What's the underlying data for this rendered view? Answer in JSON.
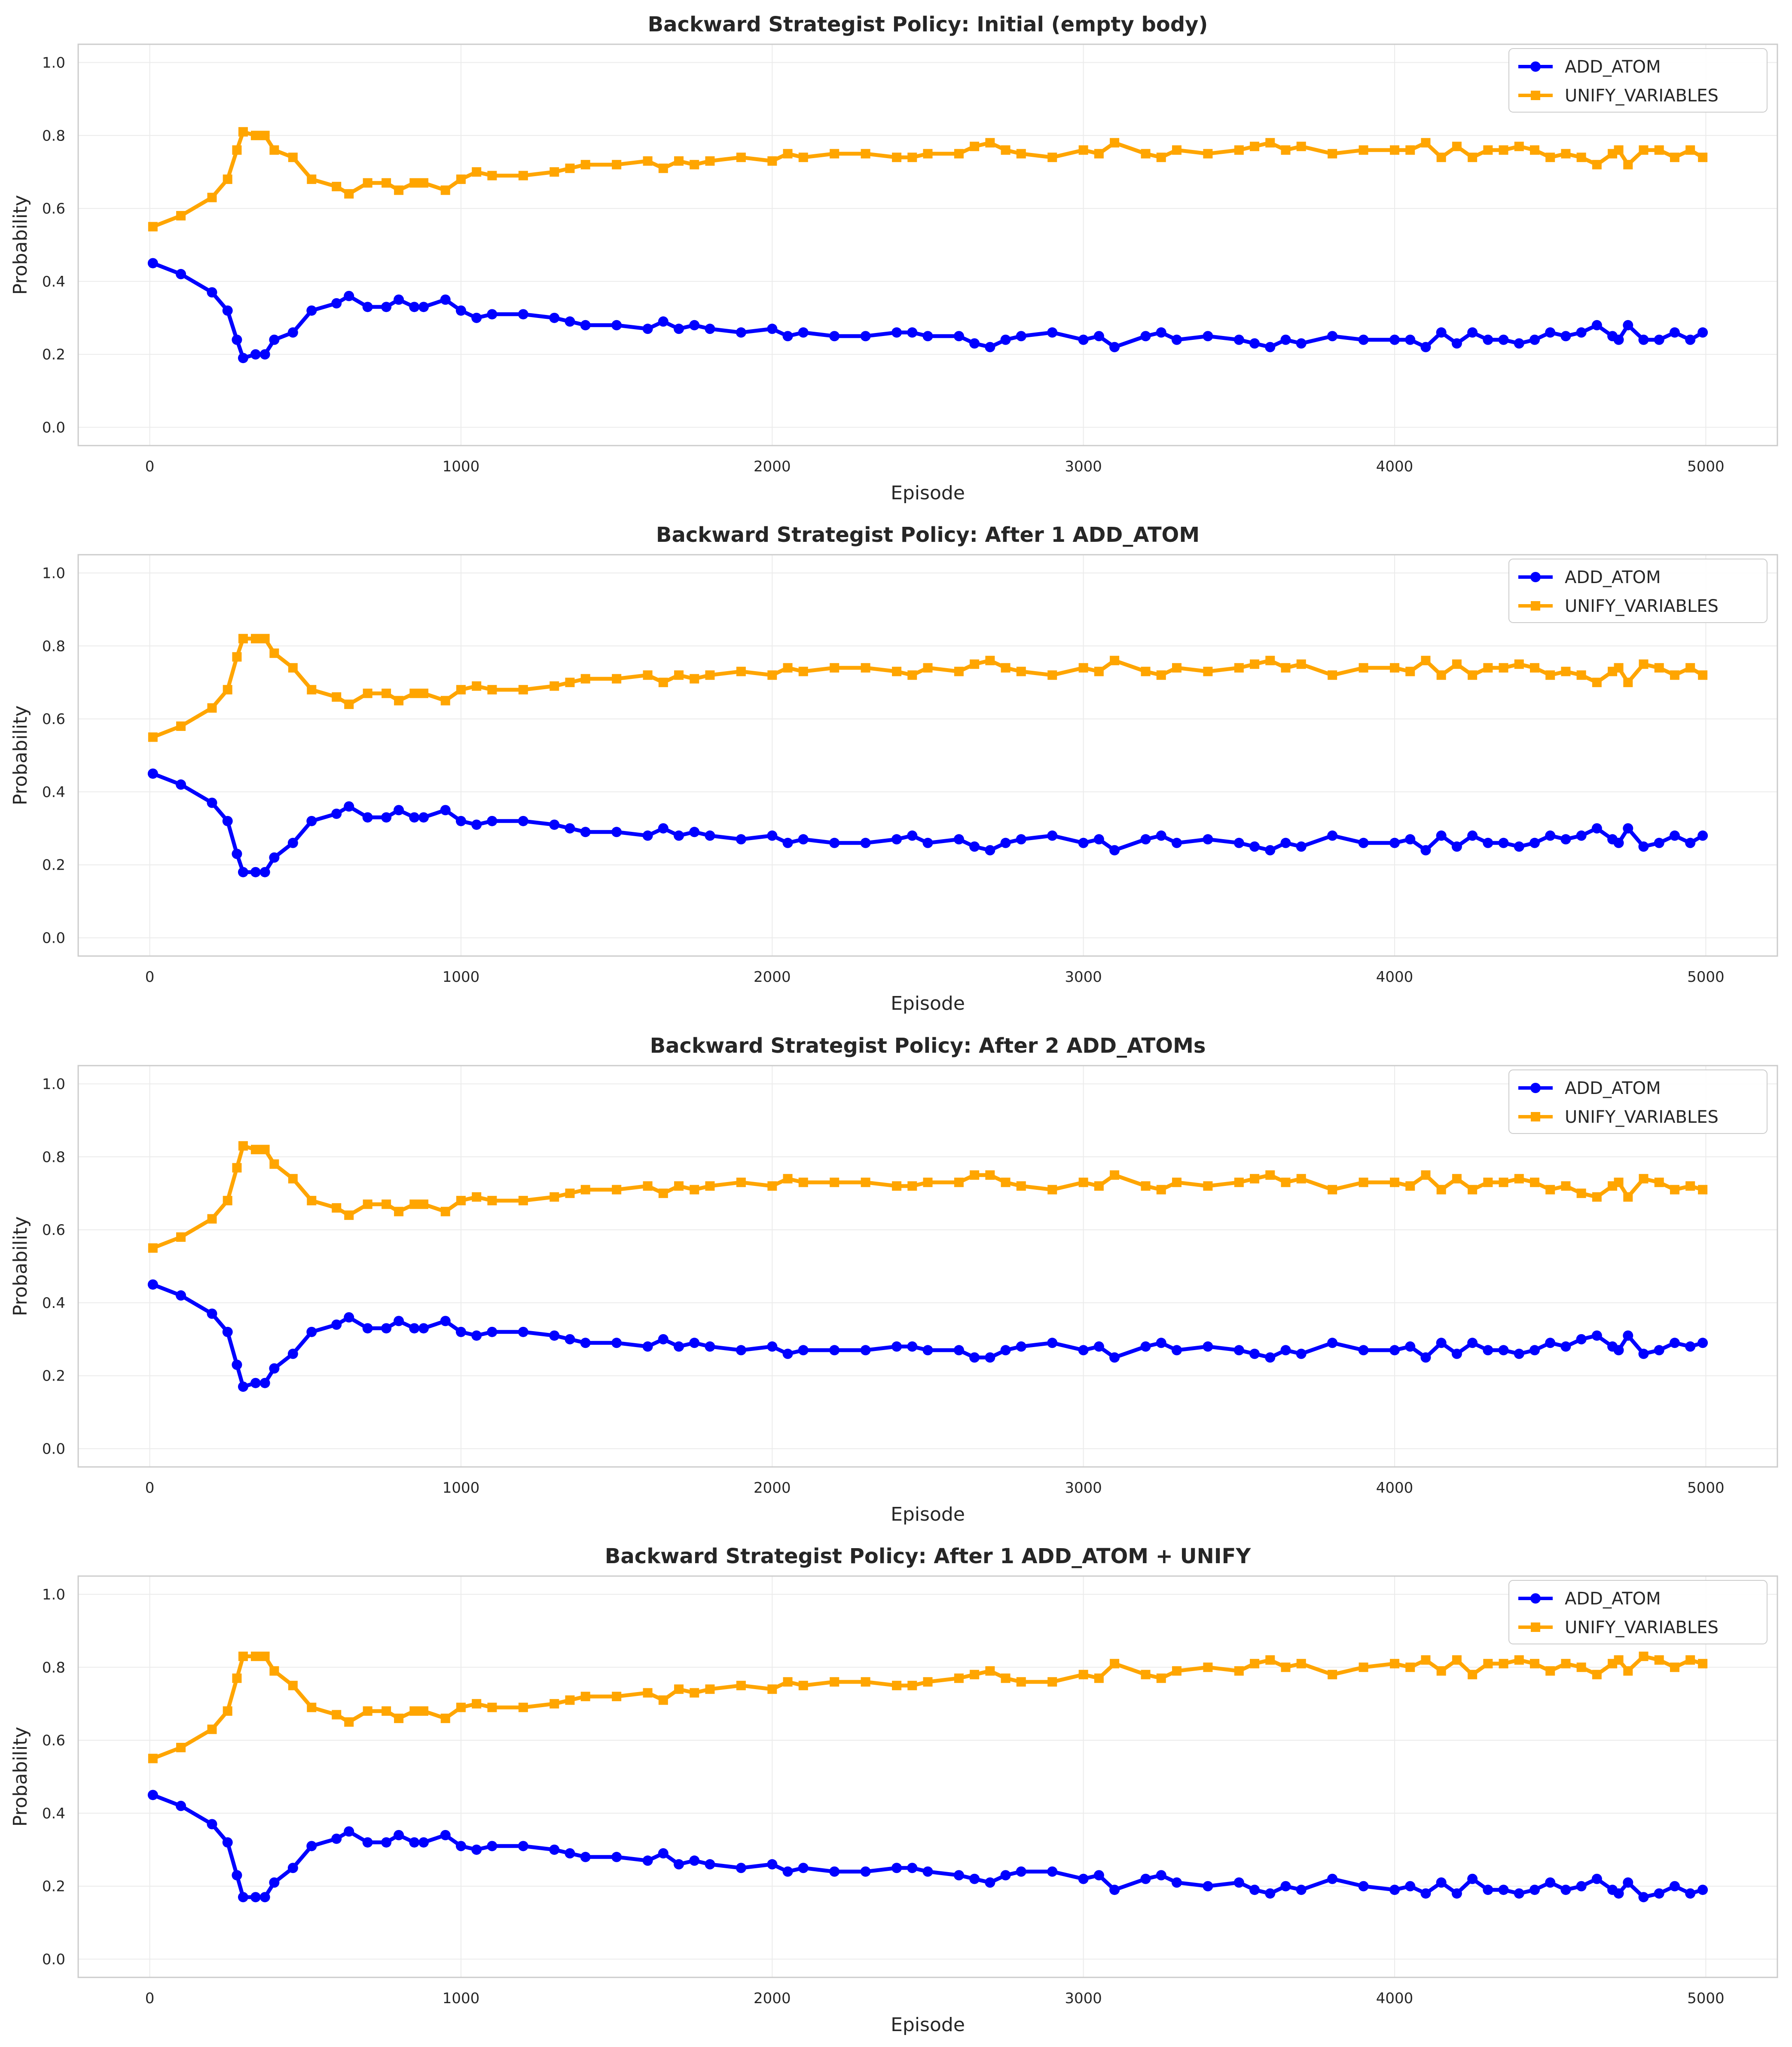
{
  "colors": {
    "add_atom": "#0000ff",
    "unify_variables": "#ffa500",
    "grid": "#ebebeb",
    "axes_edge": "#cccccc",
    "text": "#262626"
  },
  "chart_data": [
    {
      "type": "line",
      "title": "Backward Strategist Policy: Initial (empty body)",
      "xlabel": "Episode",
      "ylabel": "Probability",
      "xlim": [
        -230,
        5230
      ],
      "ylim": [
        -0.05,
        1.05
      ],
      "xticks": [
        "0",
        "1000",
        "2000",
        "3000",
        "4000",
        "5000"
      ],
      "yticks": [
        "0.0",
        "0.2",
        "0.4",
        "0.6",
        "0.8",
        "1.0"
      ],
      "grid": true,
      "legend": "top-right",
      "x": [
        10,
        100,
        200,
        250,
        280,
        300,
        340,
        370,
        400,
        460,
        520,
        600,
        640,
        700,
        760,
        800,
        850,
        880,
        950,
        1000,
        1050,
        1100,
        1200,
        1300,
        1350,
        1400,
        1500,
        1600,
        1650,
        1700,
        1750,
        1800,
        1900,
        2000,
        2050,
        2100,
        2200,
        2300,
        2400,
        2450,
        2500,
        2600,
        2650,
        2700,
        2750,
        2800,
        2900,
        3000,
        3050,
        3100,
        3200,
        3250,
        3300,
        3400,
        3500,
        3550,
        3600,
        3650,
        3700,
        3800,
        3900,
        4000,
        4050,
        4100,
        4150,
        4200,
        4250,
        4300,
        4350,
        4400,
        4450,
        4500,
        4550,
        4600,
        4650,
        4700,
        4720,
        4750,
        4800,
        4850,
        4900,
        4950,
        4990
      ],
      "series": [
        {
          "name": "ADD_ATOM",
          "marker": "circle",
          "values": [
            0.45,
            0.42,
            0.37,
            0.32,
            0.24,
            0.19,
            0.2,
            0.2,
            0.24,
            0.26,
            0.32,
            0.34,
            0.36,
            0.33,
            0.33,
            0.35,
            0.33,
            0.33,
            0.35,
            0.32,
            0.3,
            0.31,
            0.31,
            0.3,
            0.29,
            0.28,
            0.28,
            0.27,
            0.29,
            0.27,
            0.28,
            0.27,
            0.26,
            0.27,
            0.25,
            0.26,
            0.25,
            0.25,
            0.26,
            0.26,
            0.25,
            0.25,
            0.23,
            0.22,
            0.24,
            0.25,
            0.26,
            0.24,
            0.25,
            0.22,
            0.25,
            0.26,
            0.24,
            0.25,
            0.24,
            0.23,
            0.22,
            0.24,
            0.23,
            0.25,
            0.24,
            0.24,
            0.24,
            0.22,
            0.26,
            0.23,
            0.26,
            0.24,
            0.24,
            0.23,
            0.24,
            0.26,
            0.25,
            0.26,
            0.28,
            0.25,
            0.24,
            0.28,
            0.24,
            0.24,
            0.26,
            0.24,
            0.26
          ]
        },
        {
          "name": "UNIFY_VARIABLES",
          "marker": "square",
          "values": [
            0.55,
            0.58,
            0.63,
            0.68,
            0.76,
            0.81,
            0.8,
            0.8,
            0.76,
            0.74,
            0.68,
            0.66,
            0.64,
            0.67,
            0.67,
            0.65,
            0.67,
            0.67,
            0.65,
            0.68,
            0.7,
            0.69,
            0.69,
            0.7,
            0.71,
            0.72,
            0.72,
            0.73,
            0.71,
            0.73,
            0.72,
            0.73,
            0.74,
            0.73,
            0.75,
            0.74,
            0.75,
            0.75,
            0.74,
            0.74,
            0.75,
            0.75,
            0.77,
            0.78,
            0.76,
            0.75,
            0.74,
            0.76,
            0.75,
            0.78,
            0.75,
            0.74,
            0.76,
            0.75,
            0.76,
            0.77,
            0.78,
            0.76,
            0.77,
            0.75,
            0.76,
            0.76,
            0.76,
            0.78,
            0.74,
            0.77,
            0.74,
            0.76,
            0.76,
            0.77,
            0.76,
            0.74,
            0.75,
            0.74,
            0.72,
            0.75,
            0.76,
            0.72,
            0.76,
            0.76,
            0.74,
            0.76,
            0.74
          ]
        }
      ]
    },
    {
      "type": "line",
      "title": "Backward Strategist Policy: After 1 ADD_ATOM",
      "xlabel": "Episode",
      "ylabel": "Probability",
      "xlim": [
        -230,
        5230
      ],
      "ylim": [
        -0.05,
        1.05
      ],
      "xticks": [
        "0",
        "1000",
        "2000",
        "3000",
        "4000",
        "5000"
      ],
      "yticks": [
        "0.0",
        "0.2",
        "0.4",
        "0.6",
        "0.8",
        "1.0"
      ],
      "grid": true,
      "legend": "top-right",
      "x": [
        10,
        100,
        200,
        250,
        280,
        300,
        340,
        370,
        400,
        460,
        520,
        600,
        640,
        700,
        760,
        800,
        850,
        880,
        950,
        1000,
        1050,
        1100,
        1200,
        1300,
        1350,
        1400,
        1500,
        1600,
        1650,
        1700,
        1750,
        1800,
        1900,
        2000,
        2050,
        2100,
        2200,
        2300,
        2400,
        2450,
        2500,
        2600,
        2650,
        2700,
        2750,
        2800,
        2900,
        3000,
        3050,
        3100,
        3200,
        3250,
        3300,
        3400,
        3500,
        3550,
        3600,
        3650,
        3700,
        3800,
        3900,
        4000,
        4050,
        4100,
        4150,
        4200,
        4250,
        4300,
        4350,
        4400,
        4450,
        4500,
        4550,
        4600,
        4650,
        4700,
        4720,
        4750,
        4800,
        4850,
        4900,
        4950,
        4990
      ],
      "series": [
        {
          "name": "ADD_ATOM",
          "marker": "circle",
          "values": [
            0.45,
            0.42,
            0.37,
            0.32,
            0.23,
            0.18,
            0.18,
            0.18,
            0.22,
            0.26,
            0.32,
            0.34,
            0.36,
            0.33,
            0.33,
            0.35,
            0.33,
            0.33,
            0.35,
            0.32,
            0.31,
            0.32,
            0.32,
            0.31,
            0.3,
            0.29,
            0.29,
            0.28,
            0.3,
            0.28,
            0.29,
            0.28,
            0.27,
            0.28,
            0.26,
            0.27,
            0.26,
            0.26,
            0.27,
            0.28,
            0.26,
            0.27,
            0.25,
            0.24,
            0.26,
            0.27,
            0.28,
            0.26,
            0.27,
            0.24,
            0.27,
            0.28,
            0.26,
            0.27,
            0.26,
            0.25,
            0.24,
            0.26,
            0.25,
            0.28,
            0.26,
            0.26,
            0.27,
            0.24,
            0.28,
            0.25,
            0.28,
            0.26,
            0.26,
            0.25,
            0.26,
            0.28,
            0.27,
            0.28,
            0.3,
            0.27,
            0.26,
            0.3,
            0.25,
            0.26,
            0.28,
            0.26,
            0.28
          ]
        },
        {
          "name": "UNIFY_VARIABLES",
          "marker": "square",
          "values": [
            0.55,
            0.58,
            0.63,
            0.68,
            0.77,
            0.82,
            0.82,
            0.82,
            0.78,
            0.74,
            0.68,
            0.66,
            0.64,
            0.67,
            0.67,
            0.65,
            0.67,
            0.67,
            0.65,
            0.68,
            0.69,
            0.68,
            0.68,
            0.69,
            0.7,
            0.71,
            0.71,
            0.72,
            0.7,
            0.72,
            0.71,
            0.72,
            0.73,
            0.72,
            0.74,
            0.73,
            0.74,
            0.74,
            0.73,
            0.72,
            0.74,
            0.73,
            0.75,
            0.76,
            0.74,
            0.73,
            0.72,
            0.74,
            0.73,
            0.76,
            0.73,
            0.72,
            0.74,
            0.73,
            0.74,
            0.75,
            0.76,
            0.74,
            0.75,
            0.72,
            0.74,
            0.74,
            0.73,
            0.76,
            0.72,
            0.75,
            0.72,
            0.74,
            0.74,
            0.75,
            0.74,
            0.72,
            0.73,
            0.72,
            0.7,
            0.73,
            0.74,
            0.7,
            0.75,
            0.74,
            0.72,
            0.74,
            0.72
          ]
        }
      ]
    },
    {
      "type": "line",
      "title": "Backward Strategist Policy: After 2 ADD_ATOMs",
      "xlabel": "Episode",
      "ylabel": "Probability",
      "xlim": [
        -230,
        5230
      ],
      "ylim": [
        -0.05,
        1.05
      ],
      "xticks": [
        "0",
        "1000",
        "2000",
        "3000",
        "4000",
        "5000"
      ],
      "yticks": [
        "0.0",
        "0.2",
        "0.4",
        "0.6",
        "0.8",
        "1.0"
      ],
      "grid": true,
      "legend": "top-right",
      "x": [
        10,
        100,
        200,
        250,
        280,
        300,
        340,
        370,
        400,
        460,
        520,
        600,
        640,
        700,
        760,
        800,
        850,
        880,
        950,
        1000,
        1050,
        1100,
        1200,
        1300,
        1350,
        1400,
        1500,
        1600,
        1650,
        1700,
        1750,
        1800,
        1900,
        2000,
        2050,
        2100,
        2200,
        2300,
        2400,
        2450,
        2500,
        2600,
        2650,
        2700,
        2750,
        2800,
        2900,
        3000,
        3050,
        3100,
        3200,
        3250,
        3300,
        3400,
        3500,
        3550,
        3600,
        3650,
        3700,
        3800,
        3900,
        4000,
        4050,
        4100,
        4150,
        4200,
        4250,
        4300,
        4350,
        4400,
        4450,
        4500,
        4550,
        4600,
        4650,
        4700,
        4720,
        4750,
        4800,
        4850,
        4900,
        4950,
        4990
      ],
      "series": [
        {
          "name": "ADD_ATOM",
          "marker": "circle",
          "values": [
            0.45,
            0.42,
            0.37,
            0.32,
            0.23,
            0.17,
            0.18,
            0.18,
            0.22,
            0.26,
            0.32,
            0.34,
            0.36,
            0.33,
            0.33,
            0.35,
            0.33,
            0.33,
            0.35,
            0.32,
            0.31,
            0.32,
            0.32,
            0.31,
            0.3,
            0.29,
            0.29,
            0.28,
            0.3,
            0.28,
            0.29,
            0.28,
            0.27,
            0.28,
            0.26,
            0.27,
            0.27,
            0.27,
            0.28,
            0.28,
            0.27,
            0.27,
            0.25,
            0.25,
            0.27,
            0.28,
            0.29,
            0.27,
            0.28,
            0.25,
            0.28,
            0.29,
            0.27,
            0.28,
            0.27,
            0.26,
            0.25,
            0.27,
            0.26,
            0.29,
            0.27,
            0.27,
            0.28,
            0.25,
            0.29,
            0.26,
            0.29,
            0.27,
            0.27,
            0.26,
            0.27,
            0.29,
            0.28,
            0.3,
            0.31,
            0.28,
            0.27,
            0.31,
            0.26,
            0.27,
            0.29,
            0.28,
            0.29
          ]
        },
        {
          "name": "UNIFY_VARIABLES",
          "marker": "square",
          "values": [
            0.55,
            0.58,
            0.63,
            0.68,
            0.77,
            0.83,
            0.82,
            0.82,
            0.78,
            0.74,
            0.68,
            0.66,
            0.64,
            0.67,
            0.67,
            0.65,
            0.67,
            0.67,
            0.65,
            0.68,
            0.69,
            0.68,
            0.68,
            0.69,
            0.7,
            0.71,
            0.71,
            0.72,
            0.7,
            0.72,
            0.71,
            0.72,
            0.73,
            0.72,
            0.74,
            0.73,
            0.73,
            0.73,
            0.72,
            0.72,
            0.73,
            0.73,
            0.75,
            0.75,
            0.73,
            0.72,
            0.71,
            0.73,
            0.72,
            0.75,
            0.72,
            0.71,
            0.73,
            0.72,
            0.73,
            0.74,
            0.75,
            0.73,
            0.74,
            0.71,
            0.73,
            0.73,
            0.72,
            0.75,
            0.71,
            0.74,
            0.71,
            0.73,
            0.73,
            0.74,
            0.73,
            0.71,
            0.72,
            0.7,
            0.69,
            0.72,
            0.73,
            0.69,
            0.74,
            0.73,
            0.71,
            0.72,
            0.71
          ]
        }
      ]
    },
    {
      "type": "line",
      "title": "Backward Strategist Policy: After 1 ADD_ATOM + UNIFY",
      "xlabel": "Episode",
      "ylabel": "Probability",
      "xlim": [
        -230,
        5230
      ],
      "ylim": [
        -0.05,
        1.05
      ],
      "xticks": [
        "0",
        "1000",
        "2000",
        "3000",
        "4000",
        "5000"
      ],
      "yticks": [
        "0.0",
        "0.2",
        "0.4",
        "0.6",
        "0.8",
        "1.0"
      ],
      "grid": true,
      "legend": "top-right",
      "x": [
        10,
        100,
        200,
        250,
        280,
        300,
        340,
        370,
        400,
        460,
        520,
        600,
        640,
        700,
        760,
        800,
        850,
        880,
        950,
        1000,
        1050,
        1100,
        1200,
        1300,
        1350,
        1400,
        1500,
        1600,
        1650,
        1700,
        1750,
        1800,
        1900,
        2000,
        2050,
        2100,
        2200,
        2300,
        2400,
        2450,
        2500,
        2600,
        2650,
        2700,
        2750,
        2800,
        2900,
        3000,
        3050,
        3100,
        3200,
        3250,
        3300,
        3400,
        3500,
        3550,
        3600,
        3650,
        3700,
        3800,
        3900,
        4000,
        4050,
        4100,
        4150,
        4200,
        4250,
        4300,
        4350,
        4400,
        4450,
        4500,
        4550,
        4600,
        4650,
        4700,
        4720,
        4750,
        4800,
        4850,
        4900,
        4950,
        4990
      ],
      "series": [
        {
          "name": "ADD_ATOM",
          "marker": "circle",
          "values": [
            0.45,
            0.42,
            0.37,
            0.32,
            0.23,
            0.17,
            0.17,
            0.17,
            0.21,
            0.25,
            0.31,
            0.33,
            0.35,
            0.32,
            0.32,
            0.34,
            0.32,
            0.32,
            0.34,
            0.31,
            0.3,
            0.31,
            0.31,
            0.3,
            0.29,
            0.28,
            0.28,
            0.27,
            0.29,
            0.26,
            0.27,
            0.26,
            0.25,
            0.26,
            0.24,
            0.25,
            0.24,
            0.24,
            0.25,
            0.25,
            0.24,
            0.23,
            0.22,
            0.21,
            0.23,
            0.24,
            0.24,
            0.22,
            0.23,
            0.19,
            0.22,
            0.23,
            0.21,
            0.2,
            0.21,
            0.19,
            0.18,
            0.2,
            0.19,
            0.22,
            0.2,
            0.19,
            0.2,
            0.18,
            0.21,
            0.18,
            0.22,
            0.19,
            0.19,
            0.18,
            0.19,
            0.21,
            0.19,
            0.2,
            0.22,
            0.19,
            0.18,
            0.21,
            0.17,
            0.18,
            0.2,
            0.18,
            0.19
          ]
        },
        {
          "name": "UNIFY_VARIABLES",
          "marker": "square",
          "values": [
            0.55,
            0.58,
            0.63,
            0.68,
            0.77,
            0.83,
            0.83,
            0.83,
            0.79,
            0.75,
            0.69,
            0.67,
            0.65,
            0.68,
            0.68,
            0.66,
            0.68,
            0.68,
            0.66,
            0.69,
            0.7,
            0.69,
            0.69,
            0.7,
            0.71,
            0.72,
            0.72,
            0.73,
            0.71,
            0.74,
            0.73,
            0.74,
            0.75,
            0.74,
            0.76,
            0.75,
            0.76,
            0.76,
            0.75,
            0.75,
            0.76,
            0.77,
            0.78,
            0.79,
            0.77,
            0.76,
            0.76,
            0.78,
            0.77,
            0.81,
            0.78,
            0.77,
            0.79,
            0.8,
            0.79,
            0.81,
            0.82,
            0.8,
            0.81,
            0.78,
            0.8,
            0.81,
            0.8,
            0.82,
            0.79,
            0.82,
            0.78,
            0.81,
            0.81,
            0.82,
            0.81,
            0.79,
            0.81,
            0.8,
            0.78,
            0.81,
            0.82,
            0.79,
            0.83,
            0.82,
            0.8,
            0.82,
            0.81
          ]
        }
      ]
    }
  ]
}
